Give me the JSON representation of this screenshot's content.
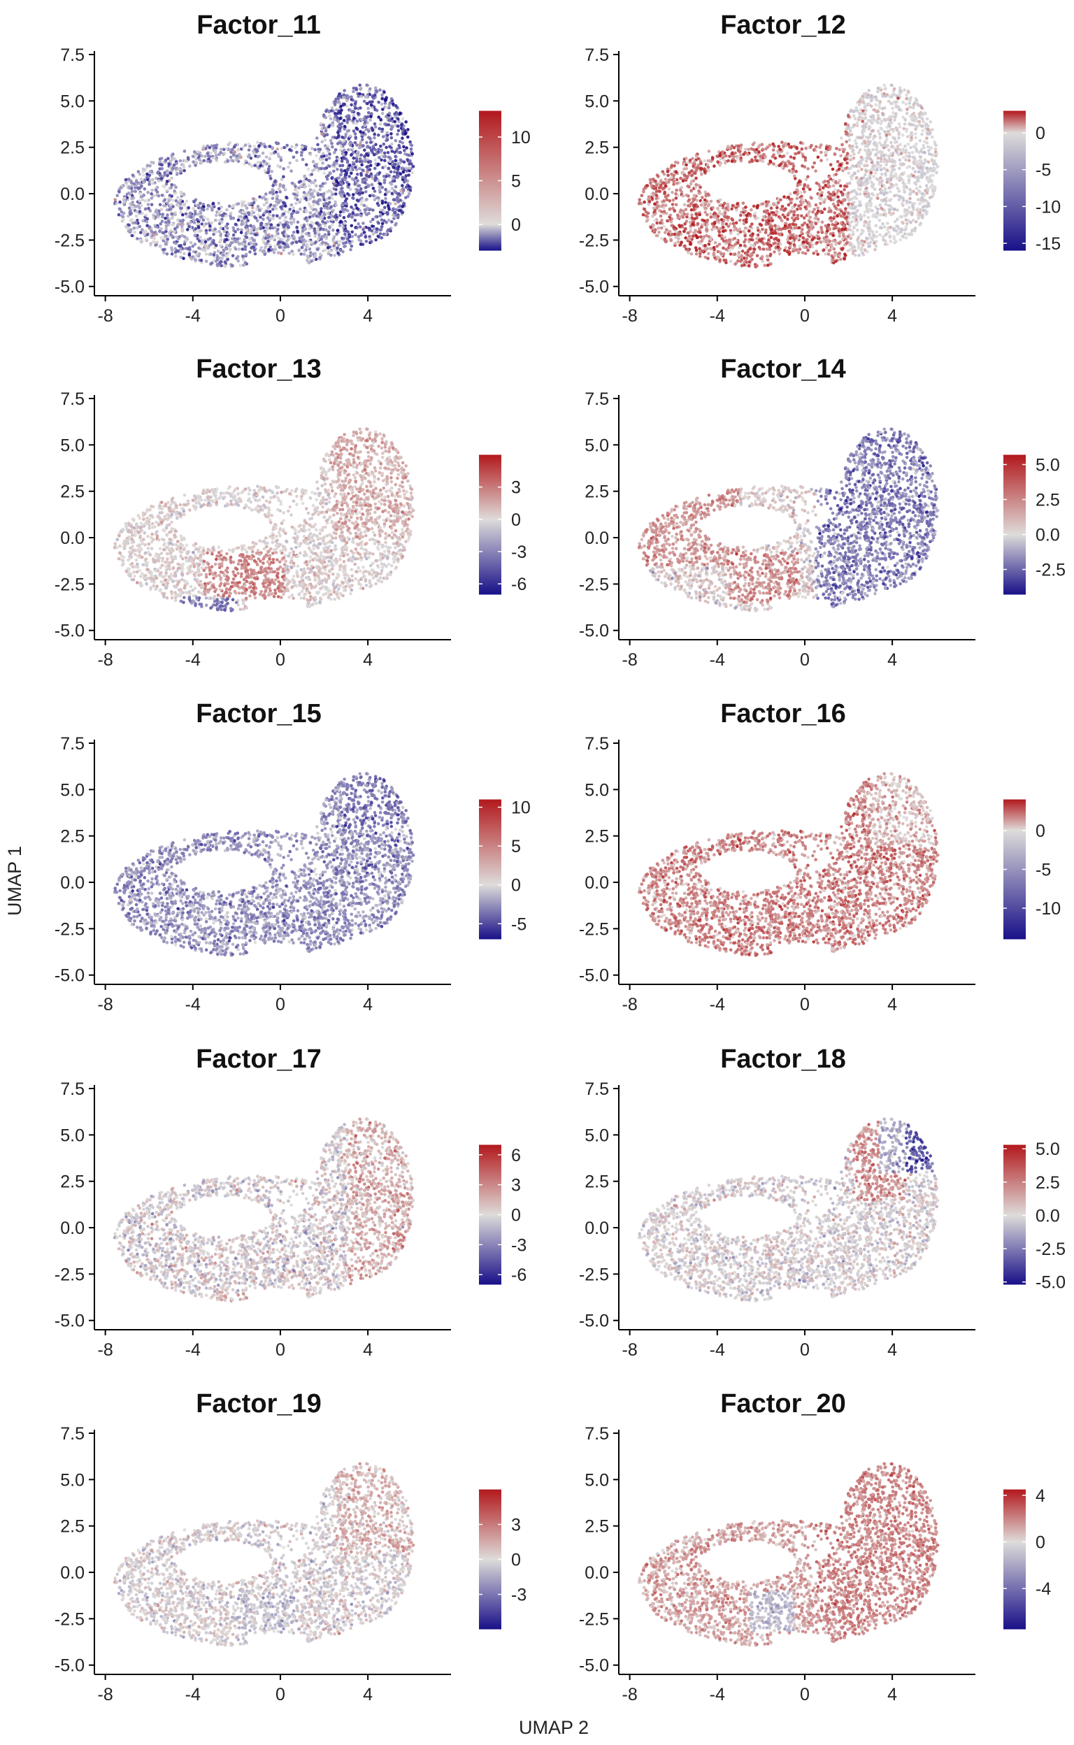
{
  "figure": {
    "x_axis_label": "UMAP 2",
    "y_axis_label": "UMAP 1"
  },
  "chart_data": [
    {
      "type": "scatter",
      "title": "Factor_11",
      "x_ticks": [
        -8,
        -4,
        0,
        4
      ],
      "y_ticks": [
        -5.0,
        -2.5,
        0.0,
        2.5,
        5.0,
        7.5
      ],
      "xlim": [
        -8.5,
        7.8
      ],
      "ylim": [
        -5.5,
        7.5
      ],
      "colorbar": {
        "min": -3,
        "max": 13,
        "ticks": [
          0,
          5,
          10
        ]
      }
    },
    {
      "type": "scatter",
      "title": "Factor_12",
      "x_ticks": [
        -8,
        -4,
        0,
        4
      ],
      "y_ticks": [
        -5.0,
        -2.5,
        0.0,
        2.5,
        5.0,
        7.5
      ],
      "xlim": [
        -8.5,
        7.8
      ],
      "ylim": [
        -5.5,
        7.5
      ],
      "colorbar": {
        "min": -16,
        "max": 3,
        "ticks": [
          0,
          -5,
          -10,
          -15
        ]
      }
    },
    {
      "type": "scatter",
      "title": "Factor_13",
      "x_ticks": [
        -8,
        -4,
        0,
        4
      ],
      "y_ticks": [
        -5.0,
        -2.5,
        0.0,
        2.5,
        5.0,
        7.5
      ],
      "xlim": [
        -8.5,
        7.8
      ],
      "ylim": [
        -5.5,
        7.5
      ],
      "colorbar": {
        "min": -7,
        "max": 6,
        "ticks": [
          3,
          0,
          -3,
          -6
        ]
      }
    },
    {
      "type": "scatter",
      "title": "Factor_14",
      "x_ticks": [
        -8,
        -4,
        0,
        4
      ],
      "y_ticks": [
        -5.0,
        -2.5,
        0.0,
        2.5,
        5.0,
        7.5
      ],
      "xlim": [
        -8.5,
        7.8
      ],
      "ylim": [
        -5.5,
        7.5
      ],
      "colorbar": {
        "min": -4.3,
        "max": 5.7,
        "ticks": [
          5.0,
          2.5,
          0.0,
          -2.5
        ]
      }
    },
    {
      "type": "scatter",
      "title": "Factor_15",
      "x_ticks": [
        -8,
        -4,
        0,
        4
      ],
      "y_ticks": [
        -5.0,
        -2.5,
        0.0,
        2.5,
        5.0,
        7.5
      ],
      "xlim": [
        -8.5,
        7.8
      ],
      "ylim": [
        -5.5,
        7.5
      ],
      "colorbar": {
        "min": -7,
        "max": 11,
        "ticks": [
          10,
          5,
          0,
          -5
        ]
      }
    },
    {
      "type": "scatter",
      "title": "Factor_16",
      "x_ticks": [
        -8,
        -4,
        0,
        4
      ],
      "y_ticks": [
        -5.0,
        -2.5,
        0.0,
        2.5,
        5.0,
        7.5
      ],
      "xlim": [
        -8.5,
        7.8
      ],
      "ylim": [
        -5.5,
        7.5
      ],
      "colorbar": {
        "min": -14,
        "max": 4,
        "ticks": [
          0,
          -5,
          -10
        ]
      }
    },
    {
      "type": "scatter",
      "title": "Factor_17",
      "x_ticks": [
        -8,
        -4,
        0,
        4
      ],
      "y_ticks": [
        -5.0,
        -2.5,
        0.0,
        2.5,
        5.0,
        7.5
      ],
      "xlim": [
        -8.5,
        7.8
      ],
      "ylim": [
        -5.5,
        7.5
      ],
      "colorbar": {
        "min": -7,
        "max": 7,
        "ticks": [
          6,
          3,
          0,
          -3,
          -6
        ]
      }
    },
    {
      "type": "scatter",
      "title": "Factor_18",
      "x_ticks": [
        -8,
        -4,
        0,
        4
      ],
      "y_ticks": [
        -5.0,
        -2.5,
        0.0,
        2.5,
        5.0,
        7.5
      ],
      "xlim": [
        -8.5,
        7.8
      ],
      "ylim": [
        -5.5,
        7.5
      ],
      "colorbar": {
        "min": -5.2,
        "max": 5.3,
        "ticks": [
          5.0,
          2.5,
          0.0,
          -2.5,
          -5.0
        ]
      }
    },
    {
      "type": "scatter",
      "title": "Factor_19",
      "x_ticks": [
        -8,
        -4,
        0,
        4
      ],
      "y_ticks": [
        -5.0,
        -2.5,
        0.0,
        2.5,
        5.0,
        7.5
      ],
      "xlim": [
        -8.5,
        7.8
      ],
      "ylim": [
        -5.5,
        7.5
      ],
      "colorbar": {
        "min": -6,
        "max": 6,
        "ticks": [
          3,
          0,
          -3
        ]
      }
    },
    {
      "type": "scatter",
      "title": "Factor_20",
      "x_ticks": [
        -8,
        -4,
        0,
        4
      ],
      "y_ticks": [
        -5.0,
        -2.5,
        0.0,
        2.5,
        5.0,
        7.5
      ],
      "xlim": [
        -8.5,
        7.8
      ],
      "ylim": [
        -5.5,
        7.5
      ],
      "colorbar": {
        "min": -7.5,
        "max": 4.5,
        "ticks": [
          4,
          0,
          -4
        ]
      }
    }
  ]
}
